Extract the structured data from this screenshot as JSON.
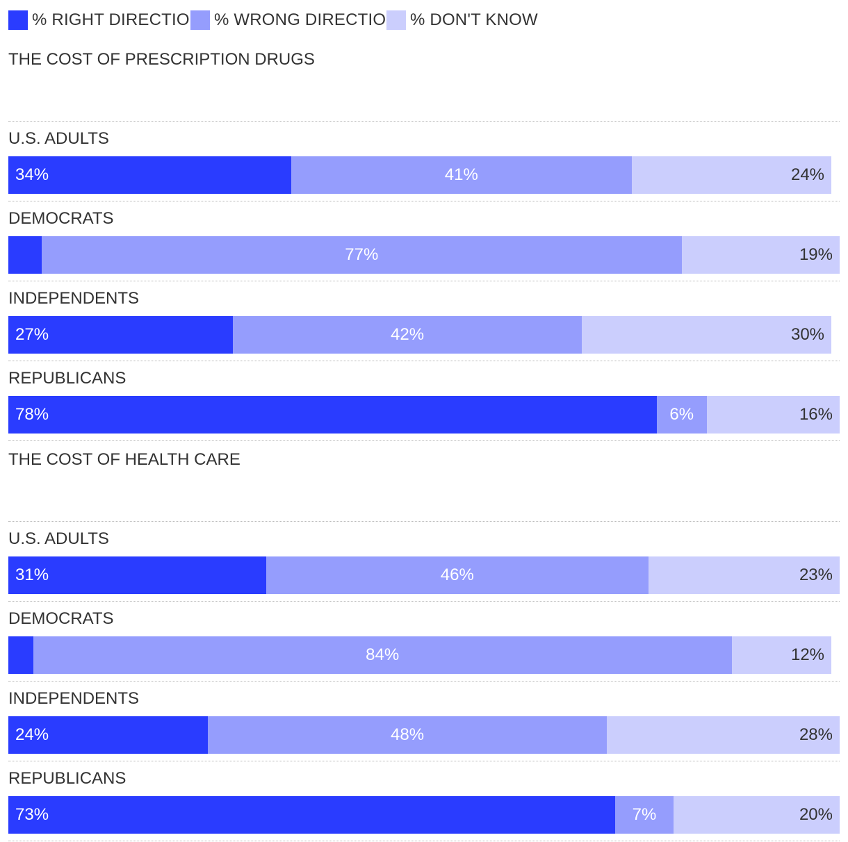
{
  "legend": [
    {
      "label": "% RIGHT DIRECTION",
      "color": "#2a3cff"
    },
    {
      "label": "% WRONG DIRECTION",
      "color": "#959dfd"
    },
    {
      "label": "% DON'T KNOW",
      "color": "#cbcefd"
    }
  ],
  "chart_data": [
    {
      "type": "bar",
      "orientation": "horizontal",
      "stacked": true,
      "title": "THE COST OF PRESCRIPTION DRUGS",
      "categories": [
        "U.S. ADULTS",
        "DEMOCRATS",
        "INDEPENDENTS",
        "REPUBLICANS"
      ],
      "series": [
        {
          "name": "% RIGHT DIRECTION",
          "values": [
            34,
            4,
            27,
            78
          ],
          "labels": [
            "34%",
            "",
            "27%",
            "78%"
          ]
        },
        {
          "name": "% WRONG DIRECTION",
          "values": [
            41,
            77,
            42,
            6
          ],
          "labels": [
            "41%",
            "77%",
            "42%",
            "6%"
          ]
        },
        {
          "name": "% DON'T KNOW",
          "values": [
            24,
            19,
            30,
            16
          ],
          "labels": [
            "24%",
            "19%",
            "30%",
            "16%"
          ]
        }
      ],
      "xlim": [
        0,
        100
      ]
    },
    {
      "type": "bar",
      "orientation": "horizontal",
      "stacked": true,
      "title": "THE COST OF HEALTH CARE",
      "categories": [
        "U.S. ADULTS",
        "DEMOCRATS",
        "INDEPENDENTS",
        "REPUBLICANS"
      ],
      "series": [
        {
          "name": "% RIGHT DIRECTION",
          "values": [
            31,
            3,
            24,
            73
          ],
          "labels": [
            "31%",
            "",
            "24%",
            "73%"
          ]
        },
        {
          "name": "% WRONG DIRECTION",
          "values": [
            46,
            84,
            48,
            7
          ],
          "labels": [
            "46%",
            "84%",
            "48%",
            "7%"
          ]
        },
        {
          "name": "% DON'T KNOW",
          "values": [
            23,
            12,
            28,
            20
          ],
          "labels": [
            "23%",
            "12%",
            "28%",
            "20%"
          ]
        }
      ],
      "xlim": [
        0,
        100
      ]
    }
  ]
}
